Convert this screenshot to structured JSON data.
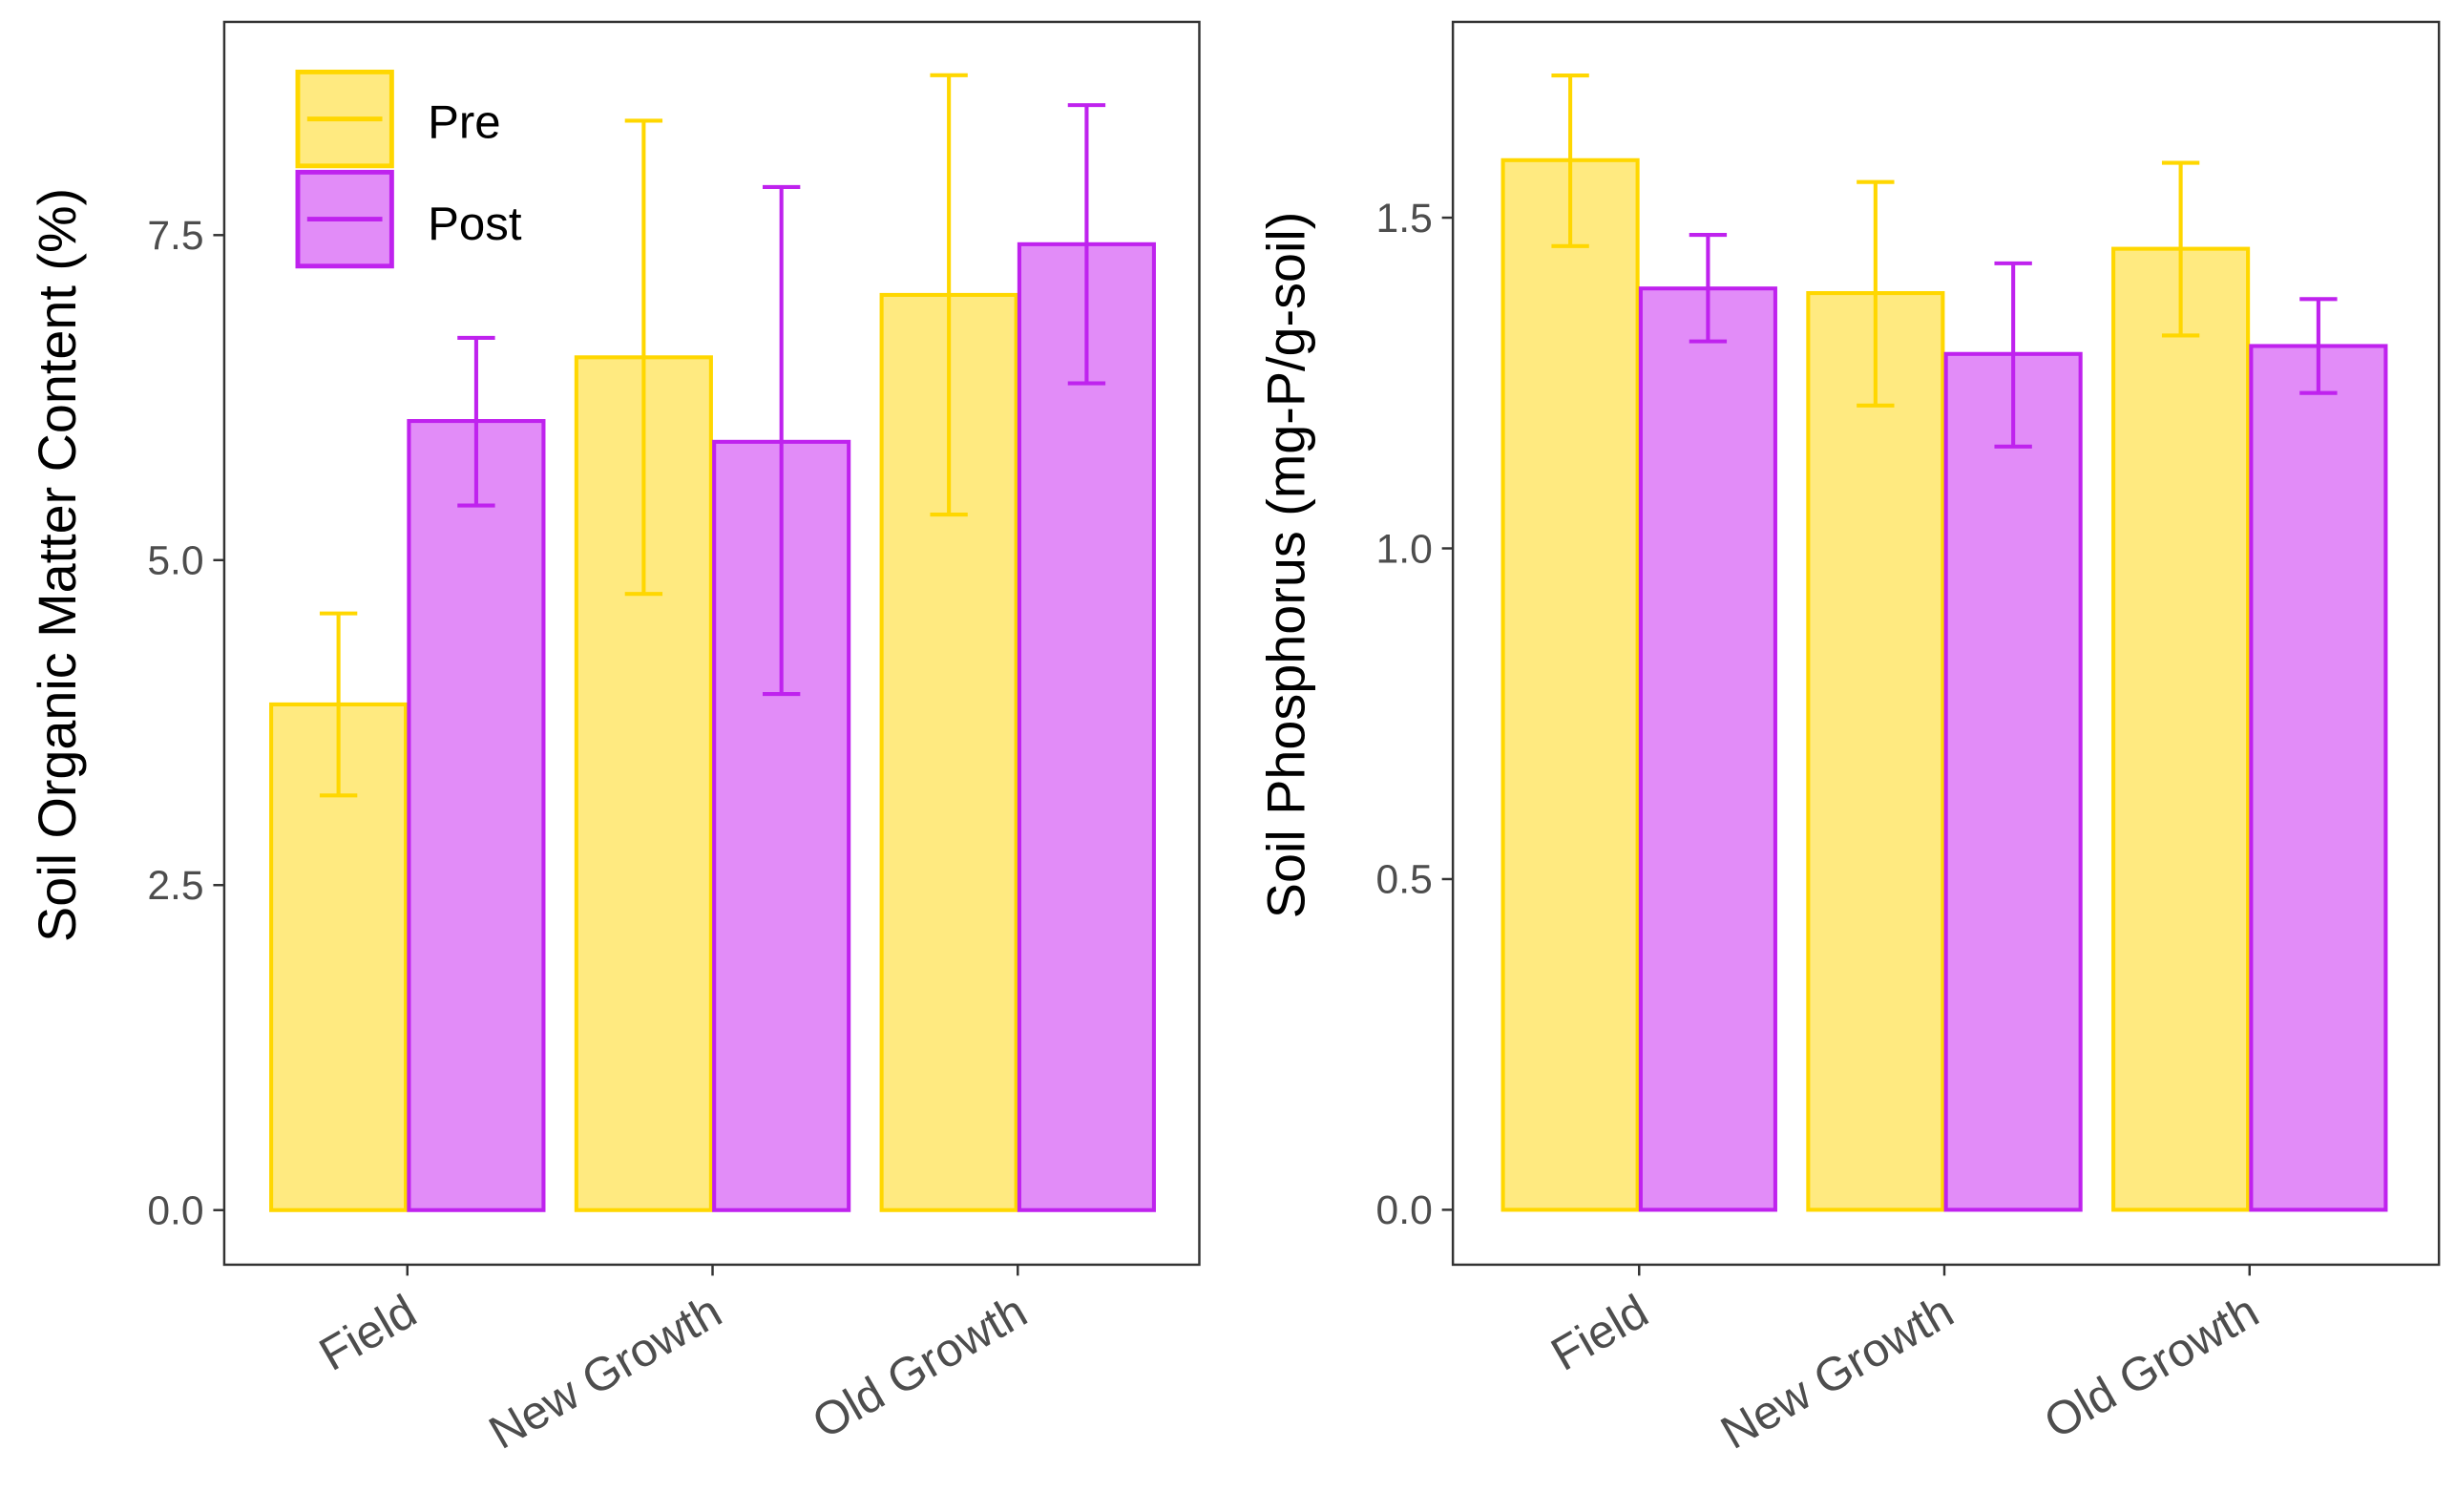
{
  "colors": {
    "pre_fill": "#FFEA80",
    "pre_stroke": "#FFD700",
    "post_fill": "#E28CF8",
    "post_stroke": "#BF22EE"
  },
  "legend": {
    "entries": [
      "Pre",
      "Post"
    ]
  },
  "chart_data": [
    {
      "type": "bar",
      "title": "",
      "xlabel": "",
      "ylabel": "Soil Organic Matter Content (%)",
      "categories": [
        "Field",
        "New Growth",
        "Old Growth"
      ],
      "ylim": [
        -0.42,
        9.14
      ],
      "yticks": [
        0,
        2.5,
        5,
        7.5
      ],
      "ytick_labels": [
        "0.0",
        "2.5",
        "5.0",
        "7.5"
      ],
      "legend_position": "top-left",
      "series": [
        {
          "name": "Pre",
          "values": [
            3.89,
            6.56,
            7.04
          ],
          "err_low": [
            3.19,
            4.74,
            5.35
          ],
          "err_high": [
            4.59,
            8.38,
            8.73
          ]
        },
        {
          "name": "Post",
          "values": [
            6.07,
            5.91,
            7.43
          ],
          "err_low": [
            5.42,
            3.97,
            6.36
          ],
          "err_high": [
            6.71,
            7.87,
            8.5
          ]
        }
      ]
    },
    {
      "type": "bar",
      "title": "",
      "xlabel": "",
      "ylabel": "Soil Phosphorus (mg-P/g-soil)",
      "categories": [
        "Field",
        "New Growth",
        "Old Growth"
      ],
      "ylim": [
        -0.083,
        1.796
      ],
      "yticks": [
        0,
        0.5,
        1.0,
        1.5
      ],
      "ytick_labels": [
        "0.0",
        "0.5",
        "1.0",
        "1.5"
      ],
      "series": [
        {
          "name": "Pre",
          "values": [
            1.587,
            1.386,
            1.453
          ],
          "err_low": [
            1.457,
            1.216,
            1.322
          ],
          "err_high": [
            1.715,
            1.554,
            1.583
          ]
        },
        {
          "name": "Post",
          "values": [
            1.393,
            1.294,
            1.306
          ],
          "err_low": [
            1.313,
            1.154,
            1.235
          ],
          "err_high": [
            1.474,
            1.431,
            1.377
          ]
        }
      ]
    }
  ]
}
